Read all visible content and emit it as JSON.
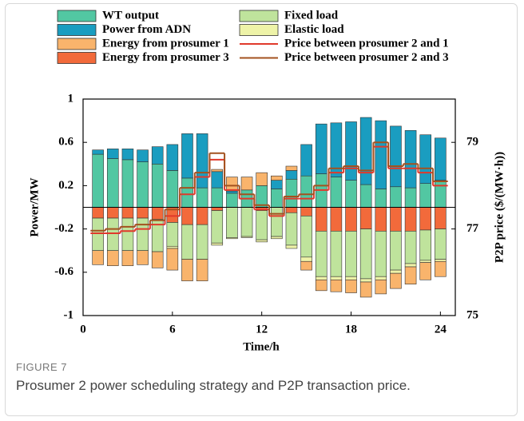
{
  "chart_data": {
    "type": "stacked-bar-step-line",
    "xlabel": "Time/h",
    "ylabel": "Power/MW",
    "y2label": "P2P price ($/(MW·h))",
    "x": [
      1,
      2,
      3,
      4,
      5,
      6,
      7,
      8,
      9,
      10,
      11,
      12,
      13,
      14,
      15,
      16,
      17,
      18,
      19,
      20,
      21,
      22,
      23,
      24
    ],
    "xlim": [
      0,
      25
    ],
    "xticks": [
      0,
      6,
      12,
      18,
      24
    ],
    "ylim": [
      -1,
      1
    ],
    "yticks": [
      1,
      0.6,
      0.2,
      -0.2,
      -0.6,
      -1
    ],
    "y2lim": [
      75,
      80
    ],
    "y2ticks": [
      79,
      77,
      75
    ],
    "series": [
      {
        "name": "WT output",
        "color": "#52c7a2",
        "values": [
          0.49,
          0.45,
          0.44,
          0.42,
          0.4,
          0.34,
          0.27,
          0.18,
          0.18,
          0.13,
          0.16,
          0.2,
          0.17,
          0.26,
          0.29,
          0.31,
          0.28,
          0.25,
          0.21,
          0.17,
          0.19,
          0.18,
          0.22,
          0.25
        ]
      },
      {
        "name": "Power from ADN",
        "color": "#1a9dc0",
        "values": [
          0.04,
          0.09,
          0.1,
          0.11,
          0.16,
          0.24,
          0.41,
          0.5,
          0.15,
          0.02,
          0,
          0,
          0.08,
          0.08,
          0.29,
          0.46,
          0.5,
          0.54,
          0.62,
          0.63,
          0.56,
          0.53,
          0.45,
          0.39
        ]
      },
      {
        "name": "Energy from prosumer 1",
        "color": "#f9b46c",
        "values": [
          -0.13,
          -0.14,
          -0.14,
          -0.13,
          -0.15,
          -0.2,
          -0.2,
          -0.2,
          0.02,
          0.13,
          0.12,
          0.12,
          0.04,
          0.04,
          -0.08,
          -0.1,
          -0.11,
          -0.12,
          -0.14,
          -0.13,
          -0.14,
          -0.16,
          -0.16,
          -0.14
        ]
      },
      {
        "name": "Energy from prosumer 3",
        "color": "#f26a3b",
        "values": [
          -0.1,
          -0.1,
          -0.1,
          -0.1,
          -0.11,
          -0.14,
          -0.16,
          -0.16,
          -0.03,
          0,
          0,
          -0.03,
          0,
          -0.05,
          -0.08,
          -0.22,
          -0.22,
          -0.22,
          -0.2,
          -0.22,
          -0.22,
          -0.22,
          -0.21,
          -0.2
        ]
      },
      {
        "name": "Fixed load",
        "color": "#bfe39c",
        "values": [
          -0.3,
          -0.3,
          -0.3,
          -0.3,
          -0.3,
          -0.22,
          -0.32,
          -0.32,
          -0.3,
          -0.28,
          -0.27,
          -0.27,
          -0.27,
          -0.3,
          -0.38,
          -0.42,
          -0.42,
          -0.42,
          -0.46,
          -0.42,
          -0.36,
          -0.3,
          -0.28,
          -0.28
        ]
      },
      {
        "name": "Elastic load",
        "color": "#eef3a8",
        "values": [
          0,
          0,
          0,
          0,
          0,
          -0.02,
          0,
          0,
          -0.02,
          -0.01,
          -0.01,
          -0.02,
          -0.02,
          -0.03,
          -0.04,
          -0.03,
          -0.03,
          -0.03,
          -0.03,
          -0.03,
          -0.03,
          -0.03,
          -0.02,
          -0.02
        ]
      }
    ],
    "lines": [
      {
        "name": "Price between prosumer 2 and 1",
        "color": "#e0392b",
        "axis": "y2",
        "values": [
          76.9,
          76.9,
          76.95,
          77.0,
          77.1,
          77.3,
          77.8,
          78.2,
          78.6,
          77.9,
          77.7,
          77.45,
          77.3,
          77.7,
          77.7,
          77.9,
          78.3,
          78.4,
          78.3,
          78.9,
          78.4,
          78.4,
          78.3,
          78.0
        ]
      },
      {
        "name": "Price between prosumer 2 and 3",
        "color": "#a3521f",
        "axis": "y2",
        "values": [
          76.96,
          77.0,
          77.05,
          77.1,
          77.2,
          77.45,
          77.95,
          78.3,
          78.75,
          78.0,
          77.8,
          77.55,
          77.35,
          77.75,
          77.8,
          78.0,
          78.4,
          78.45,
          78.35,
          79.0,
          78.45,
          78.5,
          78.4,
          78.1
        ]
      }
    ]
  },
  "caption": {
    "label": "FIGURE 7",
    "text": "Prosumer 2 power scheduling strategy and P2P transaction price."
  }
}
